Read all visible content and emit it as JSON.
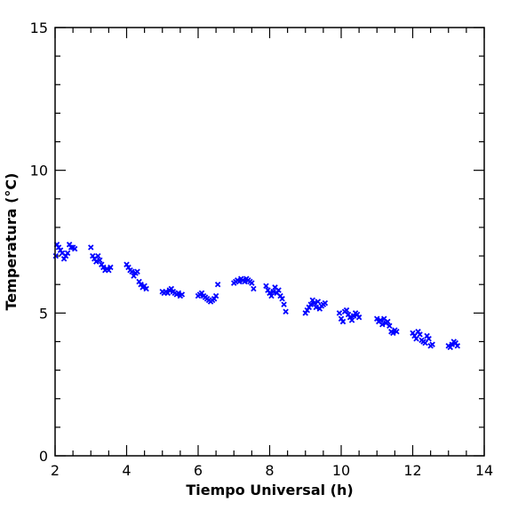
{
  "chart_data": {
    "type": "scatter",
    "title": "",
    "xlabel": "Tiempo Universal (h)",
    "ylabel": "Temperatura (°C)",
    "xlim": [
      2,
      14
    ],
    "ylim": [
      0,
      15
    ],
    "x_ticks": [
      "2",
      "4",
      "6",
      "8",
      "10",
      "12",
      "14"
    ],
    "y_ticks": [
      "0",
      "5",
      "10",
      "15"
    ],
    "marker": "x",
    "color": "#0000ff",
    "points": [
      [
        2.05,
        7.4
      ],
      [
        2.1,
        7.3
      ],
      [
        2.15,
        7.2
      ],
      [
        2.2,
        7.1
      ],
      [
        2.25,
        6.9
      ],
      [
        2.3,
        7.0
      ],
      [
        2.35,
        7.1
      ],
      [
        2.4,
        7.4
      ],
      [
        2.45,
        7.3
      ],
      [
        2.5,
        7.3
      ],
      [
        2.55,
        7.25
      ],
      [
        2.02,
        7.0
      ],
      [
        3.0,
        7.3
      ],
      [
        3.05,
        7.0
      ],
      [
        3.1,
        6.9
      ],
      [
        3.15,
        6.8
      ],
      [
        3.2,
        7.0
      ],
      [
        3.25,
        6.85
      ],
      [
        3.3,
        6.7
      ],
      [
        3.35,
        6.6
      ],
      [
        3.4,
        6.5
      ],
      [
        3.45,
        6.55
      ],
      [
        3.5,
        6.5
      ],
      [
        3.55,
        6.6
      ],
      [
        4.0,
        6.7
      ],
      [
        4.05,
        6.6
      ],
      [
        4.1,
        6.5
      ],
      [
        4.15,
        6.45
      ],
      [
        4.2,
        6.3
      ],
      [
        4.25,
        6.4
      ],
      [
        4.3,
        6.45
      ],
      [
        4.35,
        6.1
      ],
      [
        4.4,
        6.0
      ],
      [
        4.45,
        5.9
      ],
      [
        4.5,
        5.95
      ],
      [
        4.55,
        5.85
      ],
      [
        5.0,
        5.75
      ],
      [
        5.05,
        5.7
      ],
      [
        5.1,
        5.75
      ],
      [
        5.15,
        5.7
      ],
      [
        5.2,
        5.8
      ],
      [
        5.25,
        5.85
      ],
      [
        5.3,
        5.75
      ],
      [
        5.35,
        5.7
      ],
      [
        5.4,
        5.65
      ],
      [
        5.45,
        5.7
      ],
      [
        5.5,
        5.6
      ],
      [
        5.55,
        5.65
      ],
      [
        6.0,
        5.6
      ],
      [
        6.05,
        5.65
      ],
      [
        6.1,
        5.7
      ],
      [
        6.15,
        5.6
      ],
      [
        6.2,
        5.55
      ],
      [
        6.25,
        5.5
      ],
      [
        6.3,
        5.45
      ],
      [
        6.35,
        5.4
      ],
      [
        6.4,
        5.45
      ],
      [
        6.45,
        5.5
      ],
      [
        6.5,
        5.6
      ],
      [
        6.55,
        6.0
      ],
      [
        7.0,
        6.05
      ],
      [
        7.05,
        6.1
      ],
      [
        7.1,
        6.15
      ],
      [
        7.15,
        6.1
      ],
      [
        7.2,
        6.2
      ],
      [
        7.25,
        6.15
      ],
      [
        7.3,
        6.1
      ],
      [
        7.35,
        6.2
      ],
      [
        7.4,
        6.15
      ],
      [
        7.45,
        6.1
      ],
      [
        7.5,
        6.05
      ],
      [
        7.55,
        5.85
      ],
      [
        7.9,
        5.95
      ],
      [
        7.95,
        5.8
      ],
      [
        8.0,
        5.7
      ],
      [
        8.05,
        5.6
      ],
      [
        8.1,
        5.75
      ],
      [
        8.15,
        5.9
      ],
      [
        8.2,
        5.7
      ],
      [
        8.25,
        5.8
      ],
      [
        8.3,
        5.6
      ],
      [
        8.35,
        5.5
      ],
      [
        8.4,
        5.3
      ],
      [
        8.45,
        5.05
      ],
      [
        9.0,
        5.0
      ],
      [
        9.05,
        5.1
      ],
      [
        9.1,
        5.2
      ],
      [
        9.15,
        5.3
      ],
      [
        9.2,
        5.45
      ],
      [
        9.25,
        5.35
      ],
      [
        9.3,
        5.2
      ],
      [
        9.35,
        5.4
      ],
      [
        9.4,
        5.15
      ],
      [
        9.45,
        5.25
      ],
      [
        9.5,
        5.3
      ],
      [
        9.55,
        5.35
      ],
      [
        9.95,
        5.0
      ],
      [
        10.0,
        4.8
      ],
      [
        10.05,
        4.7
      ],
      [
        10.1,
        5.05
      ],
      [
        10.15,
        5.1
      ],
      [
        10.2,
        4.95
      ],
      [
        10.25,
        4.85
      ],
      [
        10.3,
        4.75
      ],
      [
        10.35,
        4.9
      ],
      [
        10.4,
        5.0
      ],
      [
        10.45,
        4.95
      ],
      [
        10.5,
        4.85
      ],
      [
        11.0,
        4.8
      ],
      [
        11.05,
        4.7
      ],
      [
        11.1,
        4.75
      ],
      [
        11.15,
        4.6
      ],
      [
        11.2,
        4.8
      ],
      [
        11.25,
        4.65
      ],
      [
        11.3,
        4.7
      ],
      [
        11.35,
        4.55
      ],
      [
        11.4,
        4.35
      ],
      [
        11.45,
        4.3
      ],
      [
        11.5,
        4.4
      ],
      [
        11.55,
        4.35
      ],
      [
        12.0,
        4.3
      ],
      [
        12.05,
        4.2
      ],
      [
        12.1,
        4.1
      ],
      [
        12.15,
        4.35
      ],
      [
        12.2,
        4.25
      ],
      [
        12.25,
        4.05
      ],
      [
        12.3,
        4.0
      ],
      [
        12.35,
        3.95
      ],
      [
        12.4,
        4.2
      ],
      [
        12.45,
        4.1
      ],
      [
        12.5,
        3.85
      ],
      [
        12.55,
        3.9
      ],
      [
        13.0,
        3.85
      ],
      [
        13.05,
        3.8
      ],
      [
        13.1,
        3.9
      ],
      [
        13.15,
        4.0
      ],
      [
        13.2,
        3.95
      ],
      [
        13.25,
        3.85
      ]
    ]
  }
}
